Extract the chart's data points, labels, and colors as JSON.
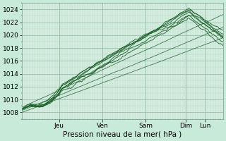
{
  "bg_color": "#c8ead8",
  "plot_bg_color": "#d4ede0",
  "grid_color_major": "#9abfaa",
  "grid_color_minor": "#b4d4c0",
  "line_color": "#1a5e28",
  "ylim": [
    1007,
    1025
  ],
  "yticks": [
    1008,
    1010,
    1012,
    1014,
    1016,
    1018,
    1020,
    1022,
    1024
  ],
  "xlabel": "Pression niveau de la mer( hPa )",
  "day_labels": [
    "Jeu",
    "Ven",
    "Sam",
    "Dim",
    "Lun"
  ],
  "day_positions": [
    0.185,
    0.4,
    0.615,
    0.815,
    0.91
  ],
  "n_points": 200
}
